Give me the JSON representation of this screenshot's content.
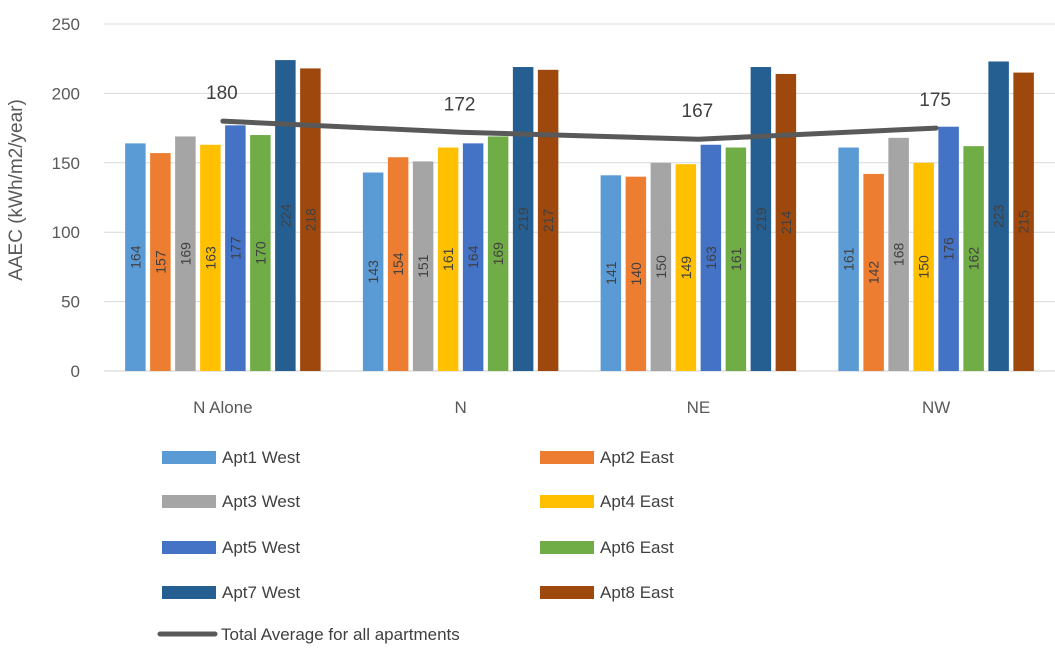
{
  "chart_data": {
    "type": "bar",
    "title": "",
    "xlabel": "",
    "ylabel": "AAEC (kWh/m2/year)",
    "ylim": [
      0,
      250
    ],
    "yticks": [
      0,
      50,
      100,
      150,
      200,
      250
    ],
    "grid": true,
    "legend_position": "bottom",
    "categories": [
      "N Alone",
      "N",
      "NE",
      "NW"
    ],
    "series": [
      {
        "name": "Apt1 West",
        "color": "#5B9BD5",
        "values": [
          164,
          143,
          141,
          161
        ]
      },
      {
        "name": "Apt2 East",
        "color": "#ED7D31",
        "values": [
          157,
          154,
          140,
          142
        ]
      },
      {
        "name": "Apt3 West",
        "color": "#A5A5A5",
        "values": [
          169,
          151,
          150,
          168
        ]
      },
      {
        "name": "Apt4 East",
        "color": "#FFC000",
        "values": [
          163,
          161,
          149,
          150
        ]
      },
      {
        "name": "Apt5 West",
        "color": "#4472C4",
        "values": [
          177,
          164,
          163,
          176
        ]
      },
      {
        "name": "Apt6 East",
        "color": "#70AD47",
        "values": [
          170,
          169,
          161,
          162
        ]
      },
      {
        "name": "Apt7 West",
        "color": "#255E91",
        "values": [
          224,
          219,
          219,
          223
        ]
      },
      {
        "name": "Apt8 East",
        "color": "#9E480E",
        "values": [
          218,
          217,
          214,
          215
        ]
      }
    ],
    "line_series": {
      "name": "Total Average for all apartments",
      "color": "#595959",
      "values": [
        180,
        172,
        167,
        175
      ]
    }
  }
}
